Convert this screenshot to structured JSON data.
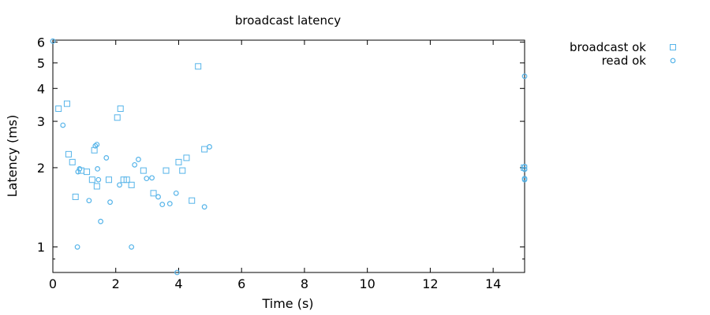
{
  "chart_data": {
    "type": "scatter",
    "title": "broadcast latency",
    "xlabel": "Time (s)",
    "ylabel": "Latency (ms)",
    "xlim": [
      0,
      15
    ],
    "ylim": [
      0.8,
      6.1
    ],
    "y_scale": "log",
    "x_ticks": [
      0,
      2,
      4,
      6,
      8,
      10,
      12,
      14
    ],
    "y_ticks": [
      1,
      2,
      3,
      4,
      5,
      6
    ],
    "grid": false,
    "legend_position": "top-right-outside",
    "color": "#56b4e9",
    "series": [
      {
        "name": "broadcast ok",
        "marker": "square",
        "points": [
          [
            0.18,
            3.35
          ],
          [
            0.45,
            3.5
          ],
          [
            0.5,
            2.25
          ],
          [
            0.62,
            2.1
          ],
          [
            0.72,
            1.55
          ],
          [
            0.9,
            1.95
          ],
          [
            1.08,
            1.93
          ],
          [
            1.25,
            1.8
          ],
          [
            1.32,
            2.33
          ],
          [
            1.4,
            1.7
          ],
          [
            1.78,
            1.8
          ],
          [
            2.05,
            3.1
          ],
          [
            2.15,
            3.35
          ],
          [
            2.25,
            1.8
          ],
          [
            2.35,
            1.8
          ],
          [
            2.5,
            1.72
          ],
          [
            2.88,
            1.95
          ],
          [
            3.2,
            1.6
          ],
          [
            3.6,
            1.95
          ],
          [
            4.0,
            2.1
          ],
          [
            4.12,
            1.95
          ],
          [
            4.25,
            2.18
          ],
          [
            4.42,
            1.5
          ],
          [
            4.62,
            4.85
          ],
          [
            4.82,
            2.35
          ],
          [
            14.98,
            2.0
          ]
        ]
      },
      {
        "name": "read ok",
        "marker": "circle",
        "points": [
          [
            0.0,
            6.05
          ],
          [
            0.32,
            2.9
          ],
          [
            0.78,
            1.0
          ],
          [
            0.8,
            1.93
          ],
          [
            0.85,
            1.98
          ],
          [
            1.15,
            1.5
          ],
          [
            1.35,
            2.42
          ],
          [
            1.4,
            2.45
          ],
          [
            1.42,
            1.98
          ],
          [
            1.45,
            1.8
          ],
          [
            1.52,
            1.25
          ],
          [
            1.7,
            2.18
          ],
          [
            1.82,
            1.48
          ],
          [
            2.12,
            1.72
          ],
          [
            2.5,
            1.0
          ],
          [
            2.6,
            2.05
          ],
          [
            2.72,
            2.15
          ],
          [
            2.98,
            1.82
          ],
          [
            3.15,
            1.83
          ],
          [
            3.35,
            1.55
          ],
          [
            3.48,
            1.45
          ],
          [
            3.72,
            1.46
          ],
          [
            3.92,
            1.6
          ],
          [
            3.95,
            0.8
          ],
          [
            4.82,
            1.42
          ],
          [
            4.98,
            2.4
          ],
          [
            15.0,
            4.45
          ],
          [
            15.0,
            2.02
          ],
          [
            15.0,
            1.97
          ],
          [
            15.0,
            1.82
          ],
          [
            15.0,
            1.8
          ]
        ]
      }
    ]
  }
}
